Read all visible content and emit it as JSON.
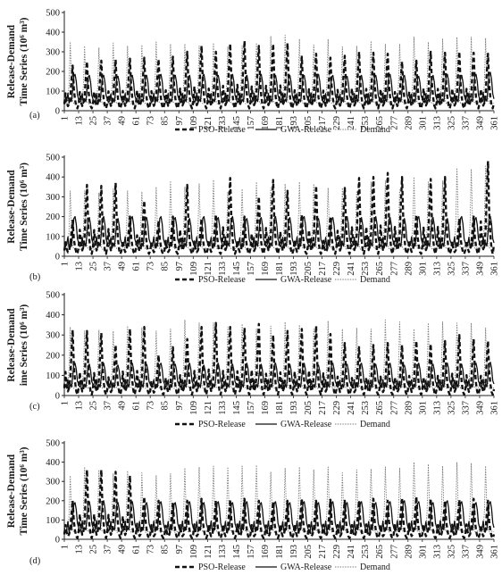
{
  "chart_data": [
    {
      "panel": "(a)",
      "type": "line",
      "ylabel": "Release-Demand Time Series (10⁶ m³)",
      "ylim": [
        0,
        500
      ],
      "y_ticks": [
        0,
        100,
        200,
        300,
        400,
        500
      ],
      "x_range": [
        1,
        361
      ],
      "x_tick_labels": [
        "1",
        "13",
        "25",
        "37",
        "49",
        "61",
        "73",
        "85",
        "97",
        "109",
        "121",
        "133",
        "145",
        "157",
        "169",
        "181",
        "193",
        "205",
        "217",
        "229",
        "241",
        "253",
        "265",
        "277",
        "289",
        "301",
        "313",
        "325",
        "337",
        "349",
        "361"
      ],
      "grid": false,
      "legend_position": "bottom",
      "series": [
        {
          "name": "PSO-Release",
          "style": "dashed",
          "color": "#111111",
          "cycle_months": 12,
          "low_flow_typical": 40,
          "annual_peaks": [
            230,
            250,
            255,
            260,
            265,
            270,
            262,
            275,
            300,
            330,
            300,
            340,
            355,
            330,
            340,
            345,
            275,
            290,
            270,
            280,
            300,
            295,
            290,
            250,
            255,
            300,
            295,
            300,
            295,
            290
          ]
        },
        {
          "name": "GWA-Release",
          "style": "solid",
          "color": "#111111",
          "cycle_months": 12,
          "low_flow_typical": 60,
          "annual_peaks": [
            185,
            180,
            180,
            175,
            180,
            180,
            185,
            180,
            180,
            185,
            180,
            185,
            180,
            185,
            180,
            180,
            180,
            185,
            180,
            175,
            180,
            180,
            185,
            180,
            175,
            180,
            185,
            180,
            185,
            195
          ]
        },
        {
          "name": "Demand",
          "style": "dotted",
          "color": "#777777",
          "cycle_months": 12,
          "low_flow_typical": 20,
          "annual_peaks": [
            350,
            330,
            320,
            345,
            330,
            335,
            350,
            340,
            340,
            330,
            345,
            325,
            330,
            345,
            380,
            385,
            365,
            335,
            365,
            325,
            330,
            355,
            340,
            340,
            375,
            350,
            365,
            375,
            375,
            370
          ]
        }
      ]
    },
    {
      "panel": "(b)",
      "type": "line",
      "ylabel": "Release-Demand Time Series (10⁶ m³)",
      "ylim": [
        0,
        500
      ],
      "y_ticks": [
        0,
        100,
        200,
        300,
        400,
        500
      ],
      "x_range": [
        1,
        361
      ],
      "x_tick_labels": [
        "1",
        "13",
        "25",
        "37",
        "49",
        "61",
        "73",
        "85",
        "97",
        "109",
        "121",
        "133",
        "145",
        "157",
        "169",
        "181",
        "193",
        "205",
        "217",
        "229",
        "241",
        "253",
        "265",
        "277",
        "289",
        "301",
        "313",
        "325",
        "337",
        "349",
        "361"
      ],
      "grid": false,
      "legend_position": "bottom",
      "series": [
        {
          "name": "PSO-Release",
          "style": "dashed",
          "color": "#111111",
          "cycle_months": 12,
          "low_flow_typical": 40,
          "annual_peaks": [
            180,
            360,
            355,
            370,
            200,
            280,
            180,
            200,
            360,
            190,
            210,
            395,
            200,
            300,
            385,
            330,
            210,
            355,
            200,
            345,
            395,
            400,
            420,
            400,
            210,
            390,
            400,
            190,
            200,
            480
          ]
        },
        {
          "name": "GWA-Release",
          "style": "solid",
          "color": "#111111",
          "cycle_months": 12,
          "low_flow_typical": 70,
          "annual_peaks": [
            200,
            195,
            200,
            190,
            200,
            195,
            200,
            195,
            190,
            200,
            195,
            200,
            190,
            195,
            200,
            195,
            200,
            190,
            195,
            200,
            195,
            200,
            195,
            190,
            200,
            195,
            190,
            200,
            195,
            200
          ]
        },
        {
          "name": "Demand",
          "style": "dotted",
          "color": "#777777",
          "cycle_months": 12,
          "low_flow_typical": 20,
          "annual_peaks": [
            330,
            330,
            320,
            340,
            330,
            325,
            350,
            380,
            350,
            365,
            385,
            325,
            340,
            375,
            345,
            365,
            375,
            365,
            345,
            345,
            330,
            375,
            380,
            335,
            400,
            375,
            380,
            445,
            440,
            455
          ]
        }
      ]
    },
    {
      "panel": "(c)",
      "type": "line",
      "ylabel": "Release-Demand Time Series (10⁶ m³)",
      "ylim": [
        0,
        500
      ],
      "y_ticks": [
        0,
        100,
        200,
        300,
        400,
        500
      ],
      "x_range": [
        1,
        361
      ],
      "x_tick_labels": [
        "1",
        "13",
        "25",
        "37",
        "49",
        "61",
        "73",
        "85",
        "97",
        "109",
        "121",
        "133",
        "145",
        "157",
        "169",
        "181",
        "193",
        "205",
        "217",
        "229",
        "241",
        "253",
        "265",
        "277",
        "289",
        "301",
        "313",
        "325",
        "337",
        "349",
        "361"
      ],
      "grid": false,
      "legend_position": "bottom",
      "series": [
        {
          "name": "PSO-Release",
          "style": "dashed",
          "color": "#111111",
          "cycle_months": 12,
          "low_flow_typical": 15,
          "annual_peaks": [
            325,
            320,
            310,
            250,
            330,
            340,
            200,
            240,
            280,
            340,
            360,
            340,
            335,
            355,
            300,
            320,
            330,
            345,
            305,
            260,
            240,
            250,
            260,
            250,
            270,
            255,
            270,
            300,
            280,
            270
          ]
        },
        {
          "name": "GWA-Release",
          "style": "solid",
          "color": "#111111",
          "cycle_months": 12,
          "low_flow_typical": 60,
          "annual_peaks": [
            160,
            155,
            160,
            150,
            160,
            155,
            160,
            155,
            160,
            150,
            160,
            155,
            160,
            155,
            160,
            155,
            160,
            150,
            160,
            155,
            160,
            155,
            160,
            150,
            160,
            155,
            160,
            155,
            160,
            165
          ]
        },
        {
          "name": "Demand",
          "style": "dotted",
          "color": "#777777",
          "cycle_months": 12,
          "low_flow_typical": 20,
          "annual_peaks": [
            340,
            320,
            325,
            320,
            345,
            335,
            320,
            330,
            375,
            360,
            360,
            340,
            355,
            330,
            345,
            365,
            350,
            330,
            370,
            330,
            335,
            330,
            375,
            365,
            330,
            360,
            365,
            360,
            360,
            335
          ]
        }
      ]
    },
    {
      "panel": "(d)",
      "type": "line",
      "ylabel": "Release-Demand Time Series (10⁶ m³)",
      "ylim": [
        0,
        500
      ],
      "y_ticks": [
        0,
        100,
        200,
        300,
        400,
        500
      ],
      "x_range": [
        1,
        361
      ],
      "x_tick_labels": [
        "1",
        "13",
        "25",
        "37",
        "49",
        "61",
        "73",
        "85",
        "97",
        "109",
        "121",
        "133",
        "145",
        "157",
        "169",
        "181",
        "193",
        "205",
        "217",
        "229",
        "241",
        "253",
        "265",
        "277",
        "289",
        "301",
        "313",
        "325",
        "337",
        "349",
        "361"
      ],
      "grid": false,
      "legend_position": "bottom",
      "series": [
        {
          "name": "PSO-Release",
          "style": "dashed",
          "color": "#111111",
          "cycle_months": 12,
          "low_flow_typical": 20,
          "annual_peaks": [
            200,
            360,
            360,
            350,
            330,
            220,
            200,
            190,
            200,
            210,
            200,
            205,
            210,
            200,
            195,
            200,
            210,
            200,
            205,
            200,
            200,
            210,
            200,
            215,
            220,
            210,
            200,
            205,
            210,
            200
          ]
        },
        {
          "name": "GWA-Release",
          "style": "solid",
          "color": "#111111",
          "cycle_months": 12,
          "low_flow_typical": 60,
          "annual_peaks": [
            190,
            195,
            200,
            190,
            195,
            190,
            195,
            190,
            195,
            190,
            195,
            190,
            195,
            190,
            195,
            190,
            195,
            190,
            195,
            190,
            195,
            190,
            195,
            200,
            195,
            190,
            200,
            195,
            190,
            195
          ]
        },
        {
          "name": "Demand",
          "style": "dotted",
          "color": "#777777",
          "cycle_months": 12,
          "low_flow_typical": 20,
          "annual_peaks": [
            330,
            375,
            360,
            340,
            355,
            345,
            330,
            340,
            370,
            375,
            380,
            375,
            380,
            385,
            350,
            370,
            375,
            360,
            375,
            345,
            360,
            365,
            375,
            370,
            400,
            390,
            380,
            400,
            395,
            380
          ]
        }
      ]
    }
  ],
  "panel_labels": [
    "(a)",
    "(b)",
    "(c)",
    "(d)"
  ],
  "ylabel_line1": "Release-Demand",
  "ylabel_line2": "Time Series (10⁶ m³)",
  "ylabel_line2_c": "ime Series (10⁶ m³)"
}
